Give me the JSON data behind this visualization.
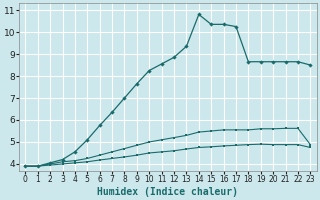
{
  "xlabel": "Humidex (Indice chaleur)",
  "bg_color": "#cce8ec",
  "grid_color": "#ffffff",
  "line_color": "#1a6b6b",
  "xlim": [
    -0.5,
    23.5
  ],
  "ylim": [
    3.7,
    11.3
  ],
  "xticks": [
    0,
    1,
    2,
    3,
    4,
    5,
    6,
    7,
    8,
    9,
    10,
    11,
    12,
    13,
    14,
    15,
    16,
    17,
    18,
    19,
    20,
    21,
    22,
    23
  ],
  "yticks": [
    4,
    5,
    6,
    7,
    8,
    9,
    10,
    11
  ],
  "curve_upper_x": [
    0,
    1,
    2,
    3,
    4,
    5,
    6,
    7,
    8,
    9,
    10,
    11,
    12,
    13,
    14,
    15,
    16,
    17,
    18,
    19,
    20,
    21,
    22,
    23
  ],
  "curve_upper_y": [
    3.9,
    3.9,
    4.05,
    4.2,
    4.55,
    5.1,
    5.75,
    6.35,
    7.0,
    7.65,
    8.25,
    8.55,
    8.85,
    9.35,
    10.8,
    10.35,
    10.35,
    10.25,
    8.65,
    8.65,
    8.65,
    8.65,
    8.65,
    8.5
  ],
  "curve_mid_x": [
    0,
    1,
    2,
    3,
    4,
    5,
    6,
    7,
    8,
    9,
    10,
    11,
    12,
    13,
    14,
    15,
    16,
    17,
    18,
    19,
    20,
    21,
    22,
    23
  ],
  "curve_mid_y": [
    3.9,
    3.9,
    4.0,
    4.1,
    4.15,
    4.25,
    4.4,
    4.55,
    4.7,
    4.85,
    5.0,
    5.1,
    5.2,
    5.3,
    5.45,
    5.5,
    5.55,
    5.55,
    5.55,
    5.6,
    5.6,
    5.62,
    5.62,
    4.88
  ],
  "curve_low_x": [
    0,
    1,
    2,
    3,
    4,
    5,
    6,
    7,
    8,
    9,
    10,
    11,
    12,
    13,
    14,
    15,
    16,
    17,
    18,
    19,
    20,
    21,
    22,
    23
  ],
  "curve_low_y": [
    3.9,
    3.9,
    3.95,
    4.0,
    4.05,
    4.1,
    4.18,
    4.25,
    4.32,
    4.4,
    4.5,
    4.55,
    4.6,
    4.68,
    4.75,
    4.78,
    4.82,
    4.85,
    4.88,
    4.9,
    4.88,
    4.88,
    4.88,
    4.75
  ],
  "font_size_label": 7,
  "font_size_tick": 6
}
